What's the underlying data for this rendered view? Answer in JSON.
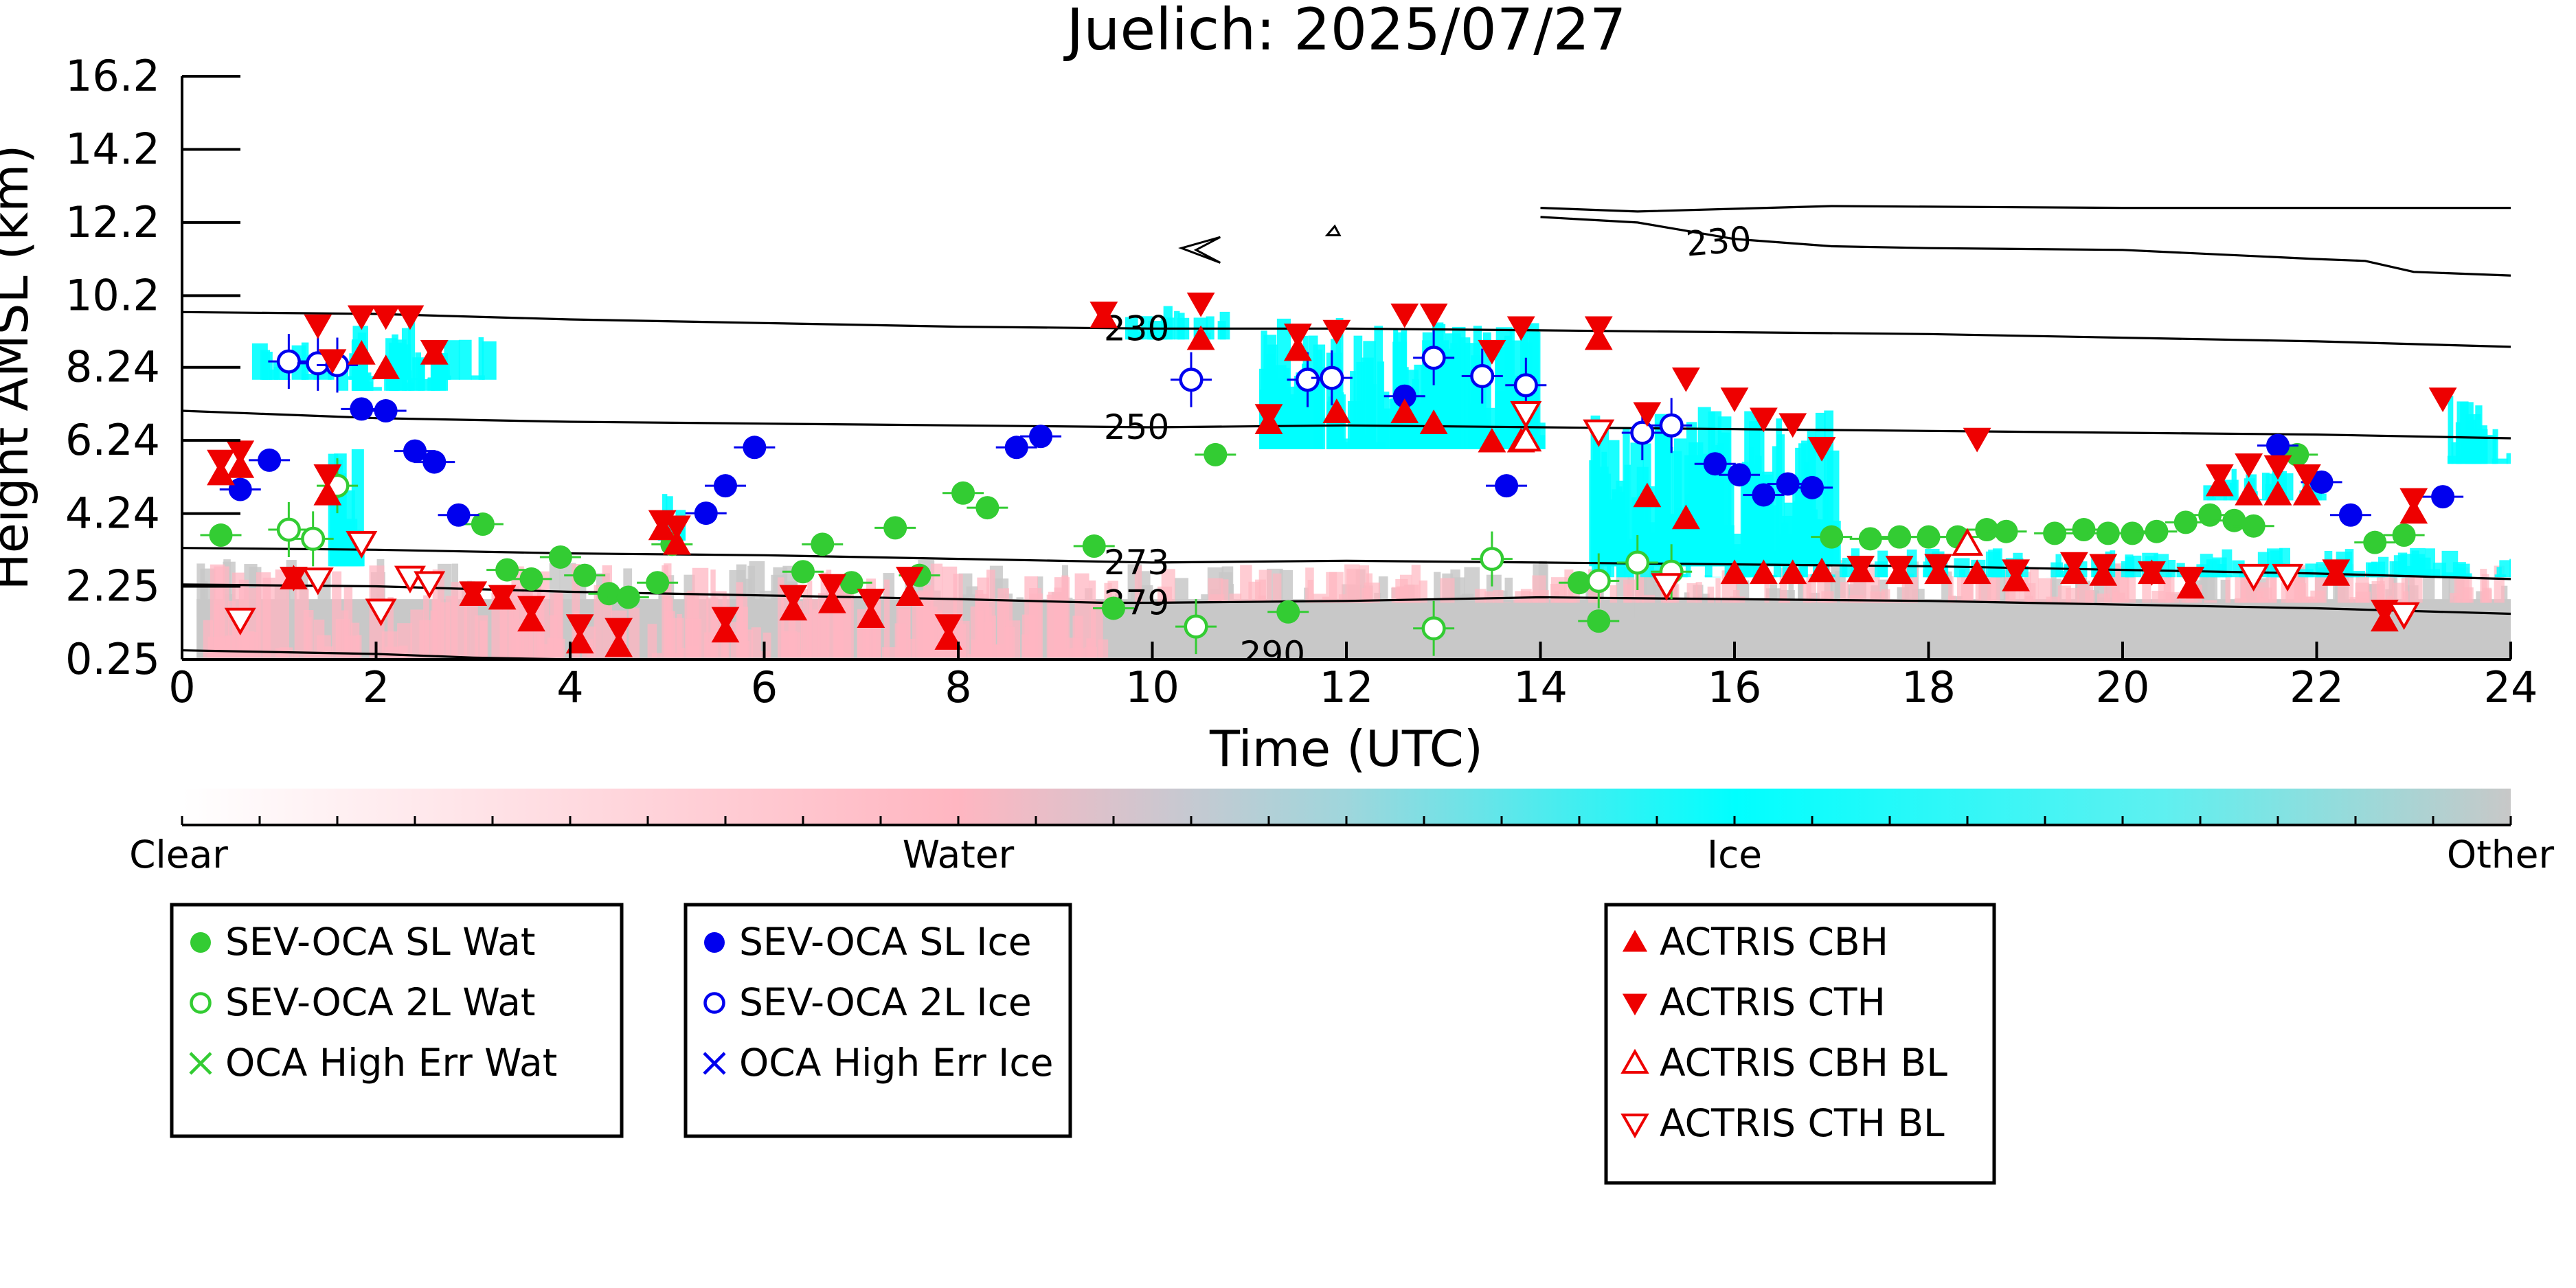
{
  "chart_data": {
    "type": "scatter",
    "title": "Juelich: 2025/07/27",
    "xlabel": "Time (UTC)",
    "ylabel": "Height AMSL (km)",
    "xlim": [
      0,
      24
    ],
    "ylim": [
      0.25,
      16.2
    ],
    "x_ticks": [
      "0",
      "2",
      "4",
      "6",
      "8",
      "10",
      "12",
      "14",
      "16",
      "18",
      "20",
      "22",
      "24"
    ],
    "y_ticks": [
      "0.25",
      "2.25",
      "4.24",
      "6.24",
      "8.24",
      "10.2",
      "12.2",
      "14.2",
      "16.2"
    ],
    "grid": false,
    "colorbar": {
      "labels": [
        "Clear",
        "Water",
        "Ice",
        "Other"
      ],
      "colors": [
        "#ffffff",
        "#ffb6c1",
        "#00ffff",
        "#c8c8c8"
      ]
    },
    "temperature_contours": [
      {
        "label": "230",
        "points": [
          [
            0,
            9.75
          ],
          [
            2,
            9.7
          ],
          [
            4,
            9.55
          ],
          [
            6,
            9.45
          ],
          [
            8,
            9.35
          ],
          [
            10,
            9.3
          ],
          [
            12,
            9.3
          ],
          [
            14,
            9.25
          ],
          [
            16,
            9.2
          ],
          [
            18,
            9.15
          ],
          [
            20,
            9.05
          ],
          [
            22,
            8.95
          ],
          [
            24,
            8.8
          ]
        ]
      },
      {
        "label": "230",
        "points": [
          [
            14,
            12.35
          ],
          [
            15,
            12.2
          ],
          [
            16,
            11.75
          ],
          [
            17,
            11.55
          ],
          [
            18,
            11.5
          ],
          [
            20,
            11.45
          ],
          [
            22,
            11.2
          ],
          [
            22.5,
            11.15
          ],
          [
            23,
            10.85
          ],
          [
            24,
            10.75
          ]
        ]
      },
      {
        "label": "230",
        "points": [
          [
            14,
            12.6
          ],
          [
            15,
            12.5
          ],
          [
            17,
            12.65
          ],
          [
            20,
            12.6
          ],
          [
            22,
            12.6
          ],
          [
            24,
            12.6
          ]
        ]
      },
      {
        "label": "250",
        "points": [
          [
            0,
            7.05
          ],
          [
            2,
            6.85
          ],
          [
            4,
            6.75
          ],
          [
            6,
            6.7
          ],
          [
            8,
            6.65
          ],
          [
            10,
            6.6
          ],
          [
            12,
            6.65
          ],
          [
            14,
            6.6
          ],
          [
            16,
            6.55
          ],
          [
            18,
            6.5
          ],
          [
            20,
            6.45
          ],
          [
            22,
            6.4
          ],
          [
            24,
            6.3
          ]
        ]
      },
      {
        "label": "273",
        "points": [
          [
            0,
            3.3
          ],
          [
            2,
            3.25
          ],
          [
            4,
            3.15
          ],
          [
            6,
            3.1
          ],
          [
            8,
            3.0
          ],
          [
            10,
            2.9
          ],
          [
            12,
            2.95
          ],
          [
            14,
            2.9
          ],
          [
            16,
            2.85
          ],
          [
            18,
            2.8
          ],
          [
            20,
            2.7
          ],
          [
            22,
            2.6
          ],
          [
            24,
            2.45
          ]
        ]
      },
      {
        "label": "279",
        "points": [
          [
            0,
            2.3
          ],
          [
            2,
            2.25
          ],
          [
            4,
            2.1
          ],
          [
            6,
            2.0
          ],
          [
            8,
            1.9
          ],
          [
            9.5,
            1.8
          ],
          [
            10,
            1.8
          ],
          [
            12,
            1.85
          ],
          [
            14,
            1.95
          ],
          [
            16,
            1.9
          ],
          [
            18,
            1.85
          ],
          [
            20,
            1.75
          ],
          [
            22,
            1.65
          ],
          [
            24,
            1.5
          ]
        ]
      },
      {
        "label": "290",
        "points": [
          [
            0,
            0.5
          ],
          [
            2,
            0.4
          ],
          [
            3,
            0.3
          ],
          [
            4,
            0.25
          ]
        ]
      }
    ],
    "series": [
      {
        "name": "SEV-OCA SL Wat",
        "color": "#33cc33",
        "marker": "filled-circle",
        "x": [
          0.4,
          3.1,
          3.35,
          3.6,
          3.9,
          4.15,
          4.4,
          4.6,
          4.9,
          5.05,
          6.4,
          6.6,
          6.9,
          7.35,
          7.6,
          8.05,
          8.3,
          9.4,
          9.6,
          10.65,
          11.4,
          14.4,
          14.6,
          17.0,
          17.4,
          17.7,
          18.0,
          18.3,
          18.6,
          18.8,
          19.3,
          19.6,
          19.85,
          20.1,
          20.35,
          20.65,
          20.9,
          21.15,
          21.35,
          21.8,
          22.6,
          22.9
        ],
        "y": [
          3.65,
          3.95,
          2.7,
          2.45,
          3.05,
          2.55,
          2.05,
          1.95,
          2.35,
          3.4,
          2.65,
          3.4,
          2.35,
          3.85,
          2.55,
          4.8,
          4.4,
          3.35,
          1.65,
          5.85,
          1.55,
          2.35,
          1.3,
          3.6,
          3.55,
          3.6,
          3.6,
          3.6,
          3.8,
          3.75,
          3.7,
          3.8,
          3.7,
          3.7,
          3.75,
          4.0,
          4.2,
          4.05,
          3.9,
          5.85,
          3.45,
          3.65
        ]
      },
      {
        "name": "SEV-OCA 2L Wat",
        "color": "#33cc33",
        "marker": "open-circle",
        "x": [
          1.1,
          1.35,
          1.6,
          10.45,
          12.9,
          13.5,
          14.6,
          15.0,
          15.35
        ],
        "y": [
          3.8,
          3.55,
          5.0,
          1.15,
          1.1,
          3.0,
          2.4,
          2.9,
          2.65
        ]
      },
      {
        "name": "OCA High Err Wat",
        "color": "#33cc33",
        "marker": "x",
        "x": [],
        "y": []
      },
      {
        "name": "SEV-OCA SL Ice",
        "color": "#0000ee",
        "marker": "filled-circle",
        "x": [
          0.6,
          0.9,
          1.85,
          2.1,
          2.4,
          2.6,
          2.85,
          5.4,
          5.6,
          5.9,
          8.6,
          8.85,
          12.6,
          13.65,
          15.8,
          16.05,
          16.3,
          16.55,
          16.8,
          21.6,
          22.05,
          22.35,
          23.3
        ],
        "y": [
          4.9,
          5.7,
          7.1,
          7.05,
          5.95,
          5.65,
          4.2,
          4.25,
          5.0,
          6.05,
          6.05,
          6.35,
          7.45,
          5.0,
          5.6,
          5.3,
          4.75,
          5.05,
          4.95,
          6.1,
          5.1,
          4.2,
          4.7
        ]
      },
      {
        "name": "SEV-OCA 2L Ice",
        "color": "#0000ee",
        "marker": "open-circle",
        "x": [
          1.1,
          1.4,
          1.6,
          10.4,
          11.6,
          11.85,
          12.9,
          13.4,
          13.85,
          15.05,
          15.35
        ],
        "y": [
          8.4,
          8.35,
          8.3,
          7.9,
          7.9,
          7.95,
          8.5,
          8.0,
          7.75,
          6.45,
          6.65
        ]
      },
      {
        "name": "OCA High Err Ice",
        "color": "#0000ee",
        "marker": "x",
        "x": [],
        "y": []
      },
      {
        "name": "ACTRIS CBH",
        "color": "#ee0000",
        "marker": "filled-triangle-up",
        "x": [
          0.4,
          0.6,
          1.15,
          1.5,
          1.85,
          2.1,
          2.6,
          3.0,
          3.3,
          3.6,
          4.1,
          4.5,
          4.95,
          5.1,
          5.6,
          6.3,
          6.7,
          7.1,
          7.5,
          7.9,
          9.5,
          10.5,
          11.2,
          11.5,
          11.9,
          12.6,
          12.9,
          13.5,
          13.8,
          14.6,
          15.1,
          15.5,
          16.0,
          16.3,
          16.6,
          16.9,
          17.3,
          17.7,
          18.1,
          18.5,
          18.9,
          19.5,
          19.8,
          20.3,
          20.7,
          21.0,
          21.3,
          21.6,
          21.9,
          22.2,
          22.7,
          23.0
        ],
        "y": [
          5.3,
          5.5,
          2.45,
          4.75,
          8.6,
          8.2,
          8.6,
          2.0,
          1.9,
          1.3,
          0.7,
          0.6,
          3.8,
          3.4,
          1.0,
          1.6,
          1.8,
          1.4,
          2.0,
          0.8,
          9.6,
          9.0,
          6.7,
          8.7,
          7.0,
          7.0,
          6.7,
          6.2,
          6.2,
          9.0,
          4.7,
          4.1,
          2.6,
          2.6,
          2.6,
          2.65,
          2.65,
          2.6,
          2.6,
          2.6,
          2.4,
          2.6,
          2.55,
          2.6,
          2.2,
          5.0,
          4.75,
          4.75,
          4.75,
          2.55,
          1.3,
          4.25
        ]
      },
      {
        "name": "ACTRIS CTH",
        "color": "#ee0000",
        "marker": "filled-triangle-down",
        "x": [
          0.4,
          0.6,
          1.15,
          1.5,
          1.4,
          1.55,
          1.85,
          2.1,
          2.35,
          2.6,
          3.0,
          3.3,
          3.6,
          4.1,
          4.5,
          4.95,
          5.1,
          5.6,
          6.3,
          6.7,
          7.1,
          7.5,
          7.9,
          9.5,
          10.5,
          11.2,
          11.5,
          11.9,
          12.6,
          12.9,
          13.5,
          13.8,
          14.6,
          15.1,
          15.5,
          16.0,
          16.3,
          16.6,
          16.9,
          17.3,
          17.7,
          18.1,
          18.5,
          18.9,
          19.5,
          19.8,
          20.3,
          20.7,
          21.0,
          21.3,
          21.6,
          21.9,
          22.2,
          22.7,
          23.0,
          23.3
        ],
        "y": [
          5.7,
          5.95,
          2.5,
          5.3,
          9.4,
          8.45,
          9.65,
          9.65,
          9.65,
          8.7,
          2.1,
          2.0,
          1.7,
          1.2,
          1.1,
          4.05,
          3.9,
          1.4,
          2.0,
          2.3,
          1.9,
          2.5,
          1.2,
          9.75,
          10.0,
          6.95,
          9.15,
          9.25,
          9.7,
          9.7,
          8.7,
          9.35,
          9.35,
          7.0,
          7.95,
          7.4,
          6.85,
          6.7,
          6.05,
          2.8,
          2.8,
          2.85,
          6.3,
          2.7,
          2.9,
          2.85,
          2.65,
          2.5,
          5.3,
          5.6,
          5.55,
          5.3,
          2.7,
          1.6,
          4.65,
          7.4
        ]
      },
      {
        "name": "ACTRIS CBH BL",
        "color": "#ee0000",
        "marker": "open-triangle-up",
        "x": [
          13.85,
          18.4
        ],
        "y": [
          6.25,
          3.4
        ]
      },
      {
        "name": "ACTRIS CTH BL",
        "color": "#ee0000",
        "marker": "open-triangle-down",
        "x": [
          0.6,
          1.4,
          1.85,
          2.05,
          2.35,
          2.55,
          13.85,
          14.6,
          15.3,
          21.35,
          21.7,
          22.9
        ],
        "y": [
          1.35,
          2.45,
          3.45,
          1.6,
          2.5,
          2.35,
          7.0,
          6.5,
          2.3,
          2.55,
          2.55,
          1.5
        ]
      }
    ],
    "legend_groups": [
      [
        "SEV-OCA SL Wat",
        "SEV-OCA 2L Wat",
        "OCA High Err Wat"
      ],
      [
        "SEV-OCA SL Ice",
        "SEV-OCA 2L Ice",
        "OCA High Err Ice"
      ],
      [
        "ACTRIS CBH",
        "ACTRIS CTH",
        "ACTRIS CBH BL",
        "ACTRIS CTH BL"
      ]
    ],
    "legend_placement": "below"
  }
}
